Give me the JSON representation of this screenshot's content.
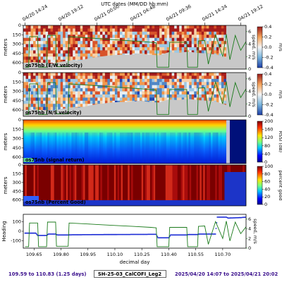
{
  "header": {
    "utc_axis_label": "UTC dates (MM/DD hh:mm)"
  },
  "utc_ticks": [
    "04/20 14:24",
    "04/20 19:12",
    "04/21 00:00",
    "04/21 04:48",
    "04/21 09:36",
    "04/21 14:24",
    "04/21 19:12"
  ],
  "decimal_ticks": [
    "109.65",
    "109.80",
    "109.95",
    "110.10",
    "110.25",
    "110.40",
    "110.55",
    "110.70"
  ],
  "xlabel": "decimal day",
  "panels": [
    {
      "title": "os75nb (E/W velocity)",
      "ylabel": "meters",
      "yticks": [
        "0",
        "150",
        "300",
        "450",
        "600"
      ],
      "cbar_ticks": [
        "0.4",
        "0.2",
        "0.0",
        "-0.2",
        "-0.4"
      ],
      "cbar_label": "m/s",
      "right_ticks": [
        "6",
        "4",
        "2",
        "0"
      ],
      "right_label": "speed, m/s"
    },
    {
      "title": "os75nb (N/S velocity)",
      "ylabel": "meters",
      "yticks": [
        "0",
        "150",
        "300",
        "450",
        "600"
      ],
      "cbar_ticks": [
        "0.4",
        "0.2",
        "0.0",
        "-0.2",
        "-0.4"
      ],
      "cbar_label": "m/s",
      "right_ticks": [
        "6",
        "4",
        "2",
        "0"
      ],
      "right_label": "speed, m/s"
    },
    {
      "title": "os75nb (signal return)",
      "ylabel": "meters",
      "yticks": [
        "0",
        "150",
        "300",
        "450",
        "600"
      ],
      "cbar_ticks": [
        "200",
        "160",
        "120",
        "80",
        "40",
        "0"
      ],
      "cbar_label": "RSSI (dB)"
    },
    {
      "title": "os75nb (Percent Good)",
      "ylabel": "meters",
      "yticks": [
        "0",
        "150",
        "300",
        "450",
        "600"
      ],
      "cbar_ticks": [
        "100",
        "80",
        "60",
        "40",
        "20",
        "0"
      ],
      "cbar_label": "percent good"
    }
  ],
  "heading_panel": {
    "ylabel": "Heading",
    "yticks": [
      "100",
      "0",
      "-100"
    ],
    "right_ticks": [
      "6",
      "4",
      "2",
      "0"
    ],
    "right_label": "speed, m/s"
  },
  "footer": {
    "left": "109.59 to 110.83 (1.25 days)",
    "center": "SH-25-03_CalCOFI_Leg2",
    "right": "2025/04/20 14:07 to 2025/04/21 20:02"
  },
  "colors": {
    "footer_text": "#3a0f8c",
    "speed_line": "#1a7a1a",
    "heading_dots": "#1f2fd6",
    "no_data": "#c8c8c8"
  },
  "chart_data": {
    "type": "heatmap",
    "x_range": [
      109.59,
      110.83
    ],
    "depth_range_m": [
      0,
      700
    ],
    "ship_speed_m_s": {
      "x": [
        109.6,
        109.62,
        109.625,
        109.67,
        109.675,
        109.72,
        109.725,
        109.77,
        109.775,
        109.84,
        109.845,
        109.95,
        110.0,
        110.1,
        110.2,
        110.3,
        110.33,
        110.335,
        110.4,
        110.405,
        110.5,
        110.505,
        110.56,
        110.565,
        110.6,
        110.62,
        110.66,
        110.7,
        110.72,
        110.74,
        110.77,
        110.8,
        110.83
      ],
      "y": [
        0.3,
        0.3,
        5.2,
        5.2,
        0.3,
        0.3,
        5.4,
        5.4,
        0.4,
        0.4,
        5.2,
        5.0,
        4.9,
        4.7,
        4.5,
        4.3,
        4.2,
        0.3,
        0.3,
        4.3,
        4.3,
        0.3,
        0.3,
        4.5,
        4.6,
        0.8,
        5.5,
        2.0,
        5.6,
        1.5,
        5.4,
        3.0,
        4.4
      ]
    },
    "heading_deg": {
      "x": [
        109.6,
        109.66,
        109.67,
        109.72,
        109.73,
        109.77,
        109.78,
        109.84,
        109.85,
        110.0,
        110.2,
        110.33,
        110.34,
        110.4,
        110.41,
        110.5,
        110.51,
        110.56,
        110.57,
        110.66,
        110.67,
        110.72,
        110.73,
        110.8,
        110.83
      ],
      "y": [
        -20,
        -20,
        -45,
        -45,
        -30,
        -30,
        -40,
        -40,
        -38,
        -36,
        -34,
        -33,
        -70,
        -70,
        -40,
        -40,
        -35,
        -35,
        -30,
        -30,
        150,
        150,
        140,
        145,
        150
      ]
    },
    "panels": [
      {
        "title": "os75nb (E/W velocity)",
        "colorbar": {
          "min": -0.4,
          "max": 0.4,
          "units": "m/s"
        }
      },
      {
        "title": "os75nb (N/S velocity)",
        "colorbar": {
          "min": -0.4,
          "max": 0.4,
          "units": "m/s"
        }
      },
      {
        "title": "os75nb (signal return)",
        "colorbar": {
          "min": 0,
          "max": 200,
          "units": "RSSI (dB)"
        }
      },
      {
        "title": "os75nb (Percent Good)",
        "colorbar": {
          "min": 0,
          "max": 100,
          "units": "percent good"
        }
      }
    ]
  }
}
